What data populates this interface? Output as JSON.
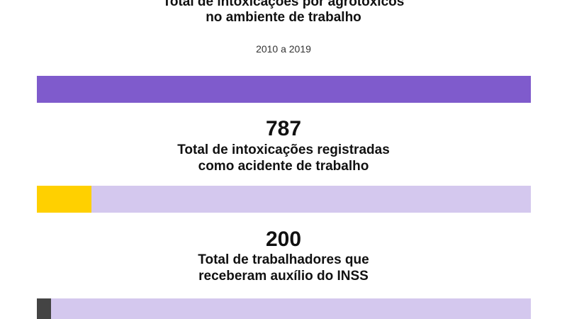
{
  "header": {
    "title_lines": [
      "Total de intoxicações por agrotóxicos",
      "no ambiente de trabalho"
    ],
    "period": "2010 a 2019"
  },
  "colors": {
    "total_bar": "#7f5bcc",
    "track": "#d4c8ee",
    "accident_fill": "#ffd000",
    "inss_fill": "#444444"
  },
  "chart_data": [
    {
      "type": "bar",
      "orientation": "horizontal",
      "series": [
        {
          "name": "Total de intoxicações por agrotóxicos no ambiente de trabalho",
          "fraction": 1.0
        }
      ]
    },
    {
      "type": "bar",
      "orientation": "horizontal",
      "value": 787,
      "label_lines": [
        "Total de intoxicações registradas",
        "como acidente de trabalho"
      ],
      "fraction_of_total": 0.11
    },
    {
      "type": "bar",
      "orientation": "horizontal",
      "value": 200,
      "label_lines": [
        "Total de trabalhadores que",
        "receberam auxílio do INSS"
      ],
      "fraction_of_total": 0.028
    }
  ]
}
